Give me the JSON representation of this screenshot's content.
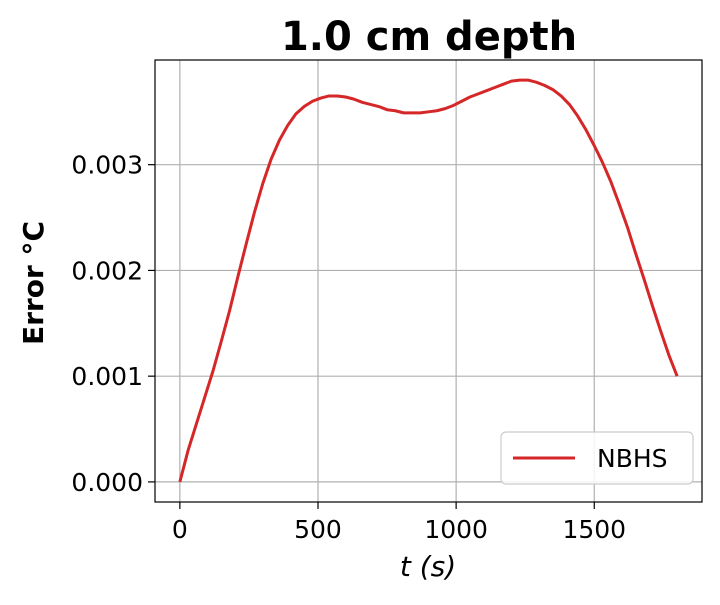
{
  "chart_data": {
    "type": "line",
    "title": "1.0 cm depth",
    "xlabel": "t (s)",
    "ylabel": "Error °C",
    "xlim": [
      -90,
      1890
    ],
    "ylim": [
      -0.00019,
      0.00399
    ],
    "xticks": [
      0,
      500,
      1000,
      1500
    ],
    "xtick_labels": [
      "0",
      "500",
      "1000",
      "1500"
    ],
    "yticks": [
      0.0,
      0.001,
      0.002,
      0.003
    ],
    "ytick_labels": [
      "0.000",
      "0.001",
      "0.002",
      "0.003"
    ],
    "grid": true,
    "legend": {
      "location": "lower right"
    },
    "series": [
      {
        "name": "NBHS",
        "color": "#d62728",
        "x": [
          0,
          30,
          60,
          90,
          120,
          150,
          180,
          210,
          240,
          270,
          300,
          330,
          360,
          390,
          420,
          450,
          480,
          510,
          540,
          570,
          600,
          630,
          660,
          690,
          720,
          750,
          780,
          810,
          840,
          870,
          900,
          930,
          960,
          990,
          1020,
          1050,
          1080,
          1110,
          1140,
          1170,
          1200,
          1230,
          1260,
          1290,
          1320,
          1350,
          1380,
          1410,
          1440,
          1470,
          1500,
          1530,
          1560,
          1590,
          1620,
          1650,
          1680,
          1710,
          1740,
          1770,
          1800
        ],
        "y": [
          0.0,
          0.0003,
          0.00055,
          0.0008,
          0.00105,
          0.00133,
          0.00162,
          0.00194,
          0.00225,
          0.00255,
          0.00282,
          0.00305,
          0.00323,
          0.00337,
          0.00348,
          0.00355,
          0.0036,
          0.00363,
          0.00365,
          0.00365,
          0.00364,
          0.00362,
          0.00359,
          0.00357,
          0.00355,
          0.00352,
          0.00351,
          0.00349,
          0.00349,
          0.00349,
          0.0035,
          0.00351,
          0.00353,
          0.00356,
          0.0036,
          0.00364,
          0.00367,
          0.0037,
          0.00373,
          0.00376,
          0.00379,
          0.0038,
          0.0038,
          0.00378,
          0.00375,
          0.00371,
          0.00365,
          0.00357,
          0.00346,
          0.00333,
          0.00318,
          0.00302,
          0.00284,
          0.00263,
          0.00241,
          0.00216,
          0.00192,
          0.00167,
          0.00143,
          0.0012,
          0.001
        ]
      }
    ]
  }
}
